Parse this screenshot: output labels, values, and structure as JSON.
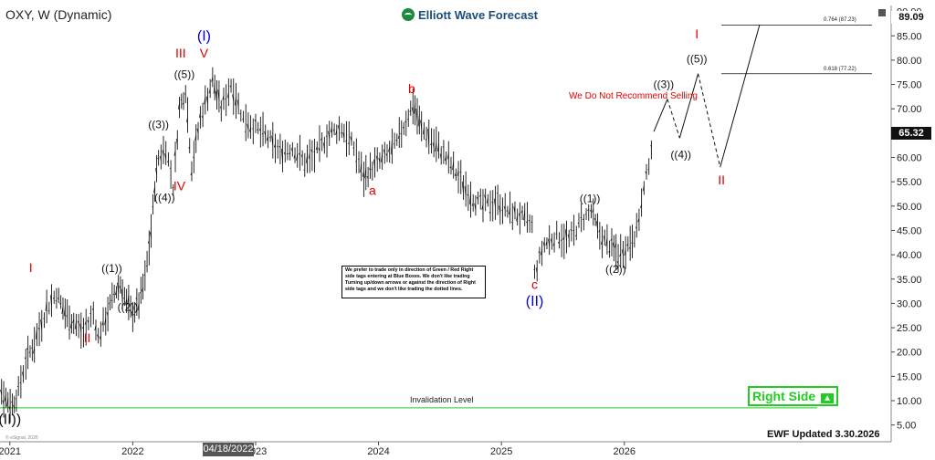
{
  "header": {
    "symbol": "OXY, W (Dynamic)",
    "logo_text": "Elliott Wave Forecast"
  },
  "notes": {
    "not_recommend": "We Do Not Recommend Selling",
    "disclaimer": "We prefer to trade only in direction of Green / Red Right side tags entering at Blue Boxes. We don't like trading Turning up/down arrows or against the direction of Right side tags and we don't like trading the dotted lines.",
    "invalidation_label": "Invalidation Level",
    "invalidation_value": "8.52",
    "right_side": "Right Side",
    "updated": "EWF Updated 3.30.2026",
    "esignal": "© eSignal, 2026"
  },
  "price_tags": {
    "last": "65.32",
    "top": "89.09"
  },
  "cursor_date": "04/18/2022",
  "fib_levels": [
    {
      "label": "0.764 (87.23)",
      "value": 87.23
    },
    {
      "label": "0.618 (77.22)",
      "value": 77.22
    }
  ],
  "colors": {
    "red": "#e00000",
    "blue": "#0000cc",
    "green": "#22cc22",
    "dark": "#111111"
  },
  "chart_data": {
    "type": "line",
    "subtype": "weekly-ohlc-bars",
    "ylim": [
      4,
      90
    ],
    "y_ticks": [
      "5.00",
      "10.00",
      "15.00",
      "20.00",
      "25.00",
      "30.00",
      "35.00",
      "40.00",
      "45.00",
      "50.00",
      "55.00",
      "60.00",
      "65.00",
      "70.00",
      "75.00",
      "80.00",
      "85.00",
      "90.00"
    ],
    "x_ticks": [
      "2021",
      "2022",
      "2023",
      "2024",
      "2025",
      "2026"
    ],
    "price_path": [
      [
        2020.8,
        20
      ],
      [
        2020.88,
        15
      ],
      [
        2020.95,
        11
      ],
      [
        2021.02,
        9
      ],
      [
        2021.07,
        12
      ],
      [
        2021.13,
        18
      ],
      [
        2021.2,
        22
      ],
      [
        2021.3,
        29
      ],
      [
        2021.38,
        32
      ],
      [
        2021.45,
        28
      ],
      [
        2021.52,
        26
      ],
      [
        2021.6,
        24
      ],
      [
        2021.68,
        28
      ],
      [
        2021.72,
        23
      ],
      [
        2021.78,
        27
      ],
      [
        2021.85,
        32
      ],
      [
        2021.9,
        34
      ],
      [
        2021.95,
        30
      ],
      [
        2022.0,
        28
      ],
      [
        2022.05,
        30
      ],
      [
        2022.1,
        35
      ],
      [
        2022.15,
        45
      ],
      [
        2022.18,
        54
      ],
      [
        2022.21,
        60
      ],
      [
        2022.27,
        62
      ],
      [
        2022.33,
        54
      ],
      [
        2022.38,
        70
      ],
      [
        2022.43,
        74
      ],
      [
        2022.48,
        58
      ],
      [
        2022.55,
        68
      ],
      [
        2022.65,
        76
      ],
      [
        2022.72,
        70
      ],
      [
        2022.8,
        75
      ],
      [
        2022.9,
        68
      ],
      [
        2023.0,
        66
      ],
      [
        2023.1,
        64
      ],
      [
        2023.2,
        61
      ],
      [
        2023.3,
        62
      ],
      [
        2023.4,
        59
      ],
      [
        2023.5,
        61
      ],
      [
        2023.6,
        65
      ],
      [
        2023.7,
        66
      ],
      [
        2023.8,
        62
      ],
      [
        2023.88,
        56
      ],
      [
        2023.95,
        58
      ],
      [
        2024.05,
        60
      ],
      [
        2024.15,
        63
      ],
      [
        2024.28,
        71
      ],
      [
        2024.35,
        66
      ],
      [
        2024.45,
        63
      ],
      [
        2024.55,
        60
      ],
      [
        2024.65,
        56
      ],
      [
        2024.75,
        52
      ],
      [
        2024.85,
        50
      ],
      [
        2024.95,
        51
      ],
      [
        2025.05,
        49
      ],
      [
        2025.15,
        48
      ],
      [
        2025.25,
        46
      ],
      [
        2025.27,
        36
      ],
      [
        2025.35,
        42
      ],
      [
        2025.45,
        44
      ],
      [
        2025.55,
        43
      ],
      [
        2025.65,
        47
      ],
      [
        2025.73,
        49
      ],
      [
        2025.8,
        44
      ],
      [
        2025.88,
        42
      ],
      [
        2025.95,
        40
      ],
      [
        2026.03,
        42
      ],
      [
        2026.1,
        45
      ],
      [
        2026.18,
        56
      ],
      [
        2026.24,
        65.32
      ]
    ],
    "projection": [
      {
        "from": [
          2026.24,
          65.32
        ],
        "to": [
          2026.35,
          72
        ],
        "dashed": false
      },
      {
        "from": [
          2026.35,
          72
        ],
        "to": [
          2026.45,
          64
        ],
        "dashed": true
      },
      {
        "from": [
          2026.45,
          64
        ],
        "to": [
          2026.6,
          77.22
        ],
        "dashed": false
      },
      {
        "from": [
          2026.6,
          77.22
        ],
        "to": [
          2026.78,
          58
        ],
        "dashed": true
      },
      {
        "from": [
          2026.78,
          58
        ],
        "to": [
          2027.1,
          87.23
        ],
        "dashed": false
      }
    ],
    "invalidation_level": 8.52,
    "wave_labels": [
      {
        "text": "((II))",
        "x": 2020.98,
        "y": 5.2,
        "color": "dark",
        "size": 16
      },
      {
        "text": "I",
        "x": 2021.17,
        "y": 36.5,
        "color": "red",
        "size": 14
      },
      {
        "text": "II",
        "x": 2021.63,
        "y": 22.0,
        "color": "red",
        "size": 14
      },
      {
        "text": "((1))",
        "x": 2021.83,
        "y": 36.5,
        "color": "dark",
        "size": 12
      },
      {
        "text": "((2))",
        "x": 2021.96,
        "y": 28.5,
        "color": "dark",
        "size": 12
      },
      {
        "text": "((3))",
        "x": 2022.21,
        "y": 66.0,
        "color": "dark",
        "size": 12
      },
      {
        "text": "((4))",
        "x": 2022.26,
        "y": 51.0,
        "color": "dark",
        "size": 12
      },
      {
        "text": "((5))",
        "x": 2022.42,
        "y": 76.3,
        "color": "dark",
        "size": 12
      },
      {
        "text": "III",
        "x": 2022.39,
        "y": 80.5,
        "color": "red",
        "size": 14
      },
      {
        "text": "IV",
        "x": 2022.38,
        "y": 53.2,
        "color": "red",
        "size": 14
      },
      {
        "text": "V",
        "x": 2022.58,
        "y": 80.5,
        "color": "red",
        "size": 14
      },
      {
        "text": "(I)",
        "x": 2022.58,
        "y": 84.0,
        "color": "blue",
        "size": 16
      },
      {
        "text": "a",
        "x": 2023.95,
        "y": 52.3,
        "color": "red",
        "size": 14
      },
      {
        "text": "b",
        "x": 2024.27,
        "y": 73.2,
        "color": "red",
        "size": 14
      },
      {
        "text": "c",
        "x": 2025.27,
        "y": 33.0,
        "color": "red",
        "size": 14
      },
      {
        "text": "(II)",
        "x": 2025.27,
        "y": 29.5,
        "color": "blue",
        "size": 16
      },
      {
        "text": "((1))",
        "x": 2025.72,
        "y": 50.8,
        "color": "dark",
        "size": 12
      },
      {
        "text": "((2))",
        "x": 2025.93,
        "y": 36.3,
        "color": "dark",
        "size": 12
      },
      {
        "text": "((3))",
        "x": 2026.32,
        "y": 74.3,
        "color": "dark",
        "size": 12
      },
      {
        "text": "((4))",
        "x": 2026.46,
        "y": 59.8,
        "color": "dark",
        "size": 12
      },
      {
        "text": "((5))",
        "x": 2026.59,
        "y": 79.5,
        "color": "dark",
        "size": 12
      },
      {
        "text": "I",
        "x": 2026.59,
        "y": 84.5,
        "color": "red",
        "size": 14
      },
      {
        "text": "II",
        "x": 2026.79,
        "y": 54.5,
        "color": "red",
        "size": 14
      }
    ]
  }
}
